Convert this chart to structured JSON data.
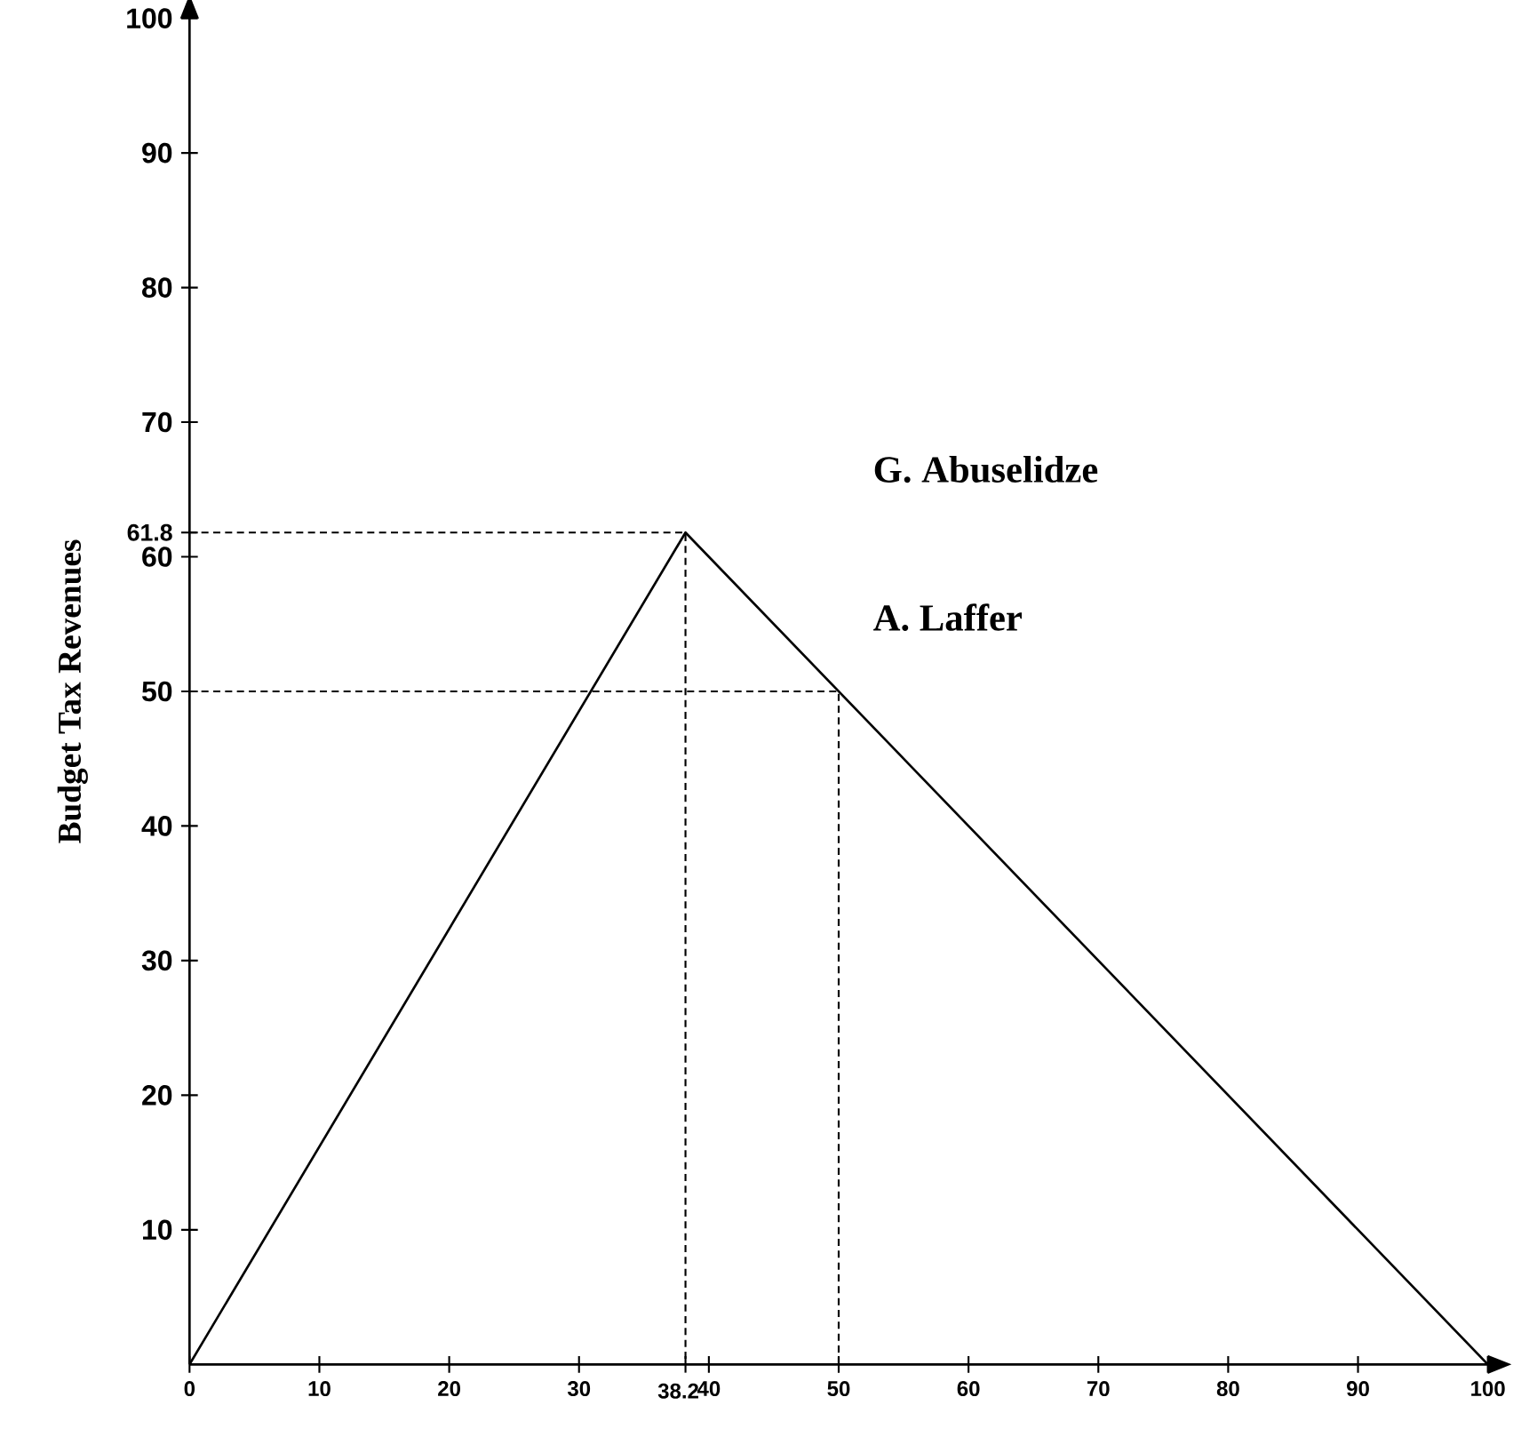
{
  "chart_data": {
    "type": "line",
    "ylabel": "Budget Tax Revenues",
    "xlim": [
      0,
      100
    ],
    "ylim": [
      0,
      100
    ],
    "xticks": [
      0,
      10,
      20,
      30,
      {
        "value": 38.2,
        "label": "38.2"
      },
      40,
      50,
      60,
      70,
      80,
      90,
      100
    ],
    "yticks": [
      10,
      20,
      30,
      40,
      50,
      60,
      {
        "value": 61.8,
        "label": "61.8"
      },
      70,
      80,
      90,
      100
    ],
    "series": [
      {
        "color": "#000000",
        "line_style": "solid",
        "x": [
          0,
          38.2,
          100
        ],
        "values": [
          0,
          61.8,
          0
        ]
      },
      {
        "color": "#000000",
        "line_style": "dashed",
        "x": [
          0,
          38.2,
          38.2
        ],
        "values": [
          61.8,
          61.8,
          0
        ]
      },
      {
        "color": "#000000",
        "line_style": "dashed",
        "x": [
          0,
          50,
          50
        ],
        "values": [
          50,
          50,
          0
        ]
      }
    ],
    "annotations": [
      "G. Abuselidze",
      "A. Laffer"
    ]
  }
}
